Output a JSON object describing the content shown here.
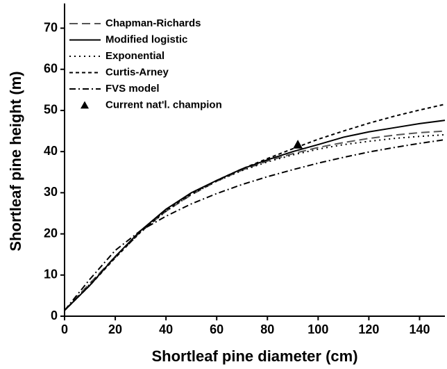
{
  "chart_data": {
    "type": "line",
    "xlabel": "Shortleaf pine diameter (cm)",
    "ylabel": "Shortleaf pine height (m)",
    "x": [
      0,
      10,
      20,
      30,
      40,
      50,
      60,
      70,
      80,
      90,
      100,
      110,
      120,
      130,
      140,
      150
    ],
    "series": [
      {
        "name": "Chapman-Richards",
        "color": "#555555",
        "linestyle": "long-dash",
        "values": [
          1.4,
          8,
          14.5,
          20.5,
          25.5,
          29.5,
          32.8,
          35.5,
          37.7,
          39.5,
          41,
          42.2,
          43.2,
          44,
          44.6,
          45
        ]
      },
      {
        "name": "Modified logistic",
        "color": "#000000",
        "linestyle": "solid",
        "values": [
          1.4,
          7.5,
          14.5,
          20.8,
          26,
          30,
          33,
          35.8,
          38,
          40,
          41.7,
          43.5,
          44.8,
          45.8,
          46.8,
          47.6
        ]
      },
      {
        "name": "Exponential",
        "color": "#000000",
        "linestyle": "dotted",
        "values": [
          1.4,
          7.8,
          14.3,
          20.4,
          25.5,
          29.6,
          32.8,
          35.4,
          37.5,
          39.2,
          40.6,
          41.7,
          42.5,
          43.2,
          43.7,
          44.1
        ]
      },
      {
        "name": "Curtis-Arney",
        "color": "#000000",
        "linestyle": "dashed",
        "values": [
          1.4,
          7.5,
          14.2,
          20.5,
          25.8,
          29.8,
          33,
          35.8,
          38.3,
          40.7,
          43,
          45,
          46.9,
          48.6,
          50.1,
          51.5
        ]
      },
      {
        "name": "FVS model",
        "color": "#000000",
        "linestyle": "dash-dot",
        "values": [
          1.4,
          9,
          16,
          20.8,
          24.3,
          27.3,
          29.8,
          32,
          33.9,
          35.6,
          37.2,
          38.6,
          39.9,
          41,
          42,
          42.9
        ]
      }
    ],
    "points": [
      {
        "name": "Current nat'l. champion",
        "color": "#000000",
        "marker": "triangle",
        "x": 92,
        "y": 41.7
      }
    ],
    "xlim": [
      0,
      150
    ],
    "xticks": [
      0,
      20,
      40,
      60,
      80,
      100,
      120,
      140
    ],
    "ylim": [
      0,
      76
    ],
    "yticks": [
      0,
      10,
      20,
      30,
      40,
      50,
      60,
      70
    ],
    "legend": "top-left"
  }
}
